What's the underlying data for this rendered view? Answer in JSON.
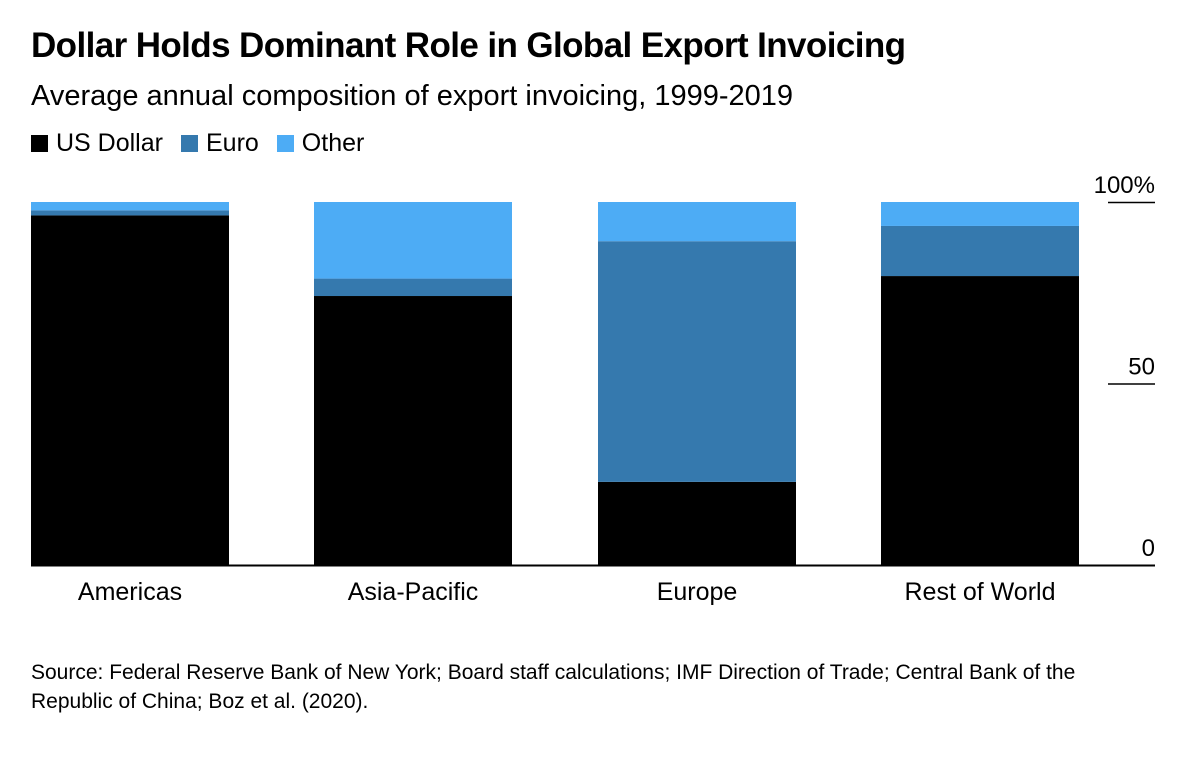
{
  "colors": {
    "us_dollar": "#000000",
    "euro": "#3579ae",
    "other": "#4dacf5",
    "axis": "#000000"
  },
  "chart_data": {
    "type": "bar",
    "stacked": true,
    "title": "Dollar Holds Dominant Role in Global Export Invoicing",
    "subtitle": "Average annual composition of export invoicing, 1999-2019",
    "categories": [
      "Americas",
      "Asia-Pacific",
      "Europe",
      "Rest of World"
    ],
    "series": [
      {
        "name": "US Dollar",
        "values": [
          96.3,
          74.1,
          22.9,
          79.6
        ]
      },
      {
        "name": "Euro",
        "values": [
          1.4,
          4.8,
          66.3,
          13.8
        ]
      },
      {
        "name": "Other",
        "values": [
          2.3,
          21.1,
          10.8,
          6.6
        ]
      }
    ],
    "ylim": [
      0,
      100
    ],
    "yticks": [
      {
        "value": 0,
        "label": "0"
      },
      {
        "value": 50,
        "label": "50"
      },
      {
        "value": 100,
        "label": "100%"
      }
    ],
    "legend_position": "top-left",
    "xlabel": "",
    "ylabel": ""
  },
  "source": "Source: Federal Reserve Bank of New York; Board staff calculations; IMF Direction of Trade; Central Bank of the Republic of China; Boz et al. (2020)."
}
